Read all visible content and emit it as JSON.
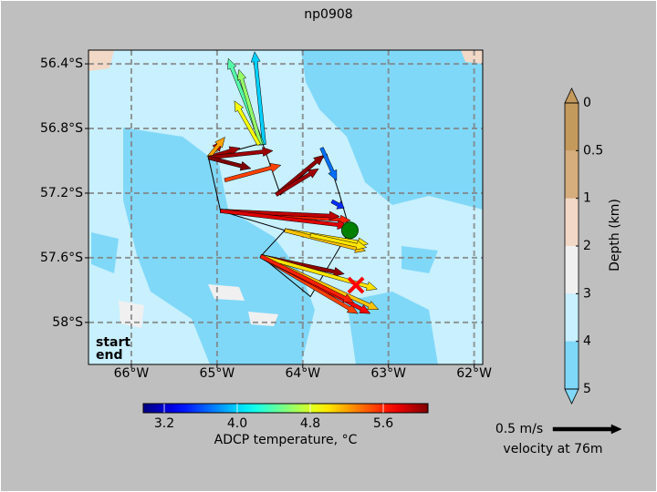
{
  "chart_data": {
    "type": "quiver",
    "title": "np0908",
    "xlim": [
      -66.5,
      -61.9
    ],
    "ylim": [
      -58.26,
      -56.315
    ],
    "xticks": [
      {
        "value": -66,
        "label": "66°W"
      },
      {
        "value": -65,
        "label": "65°W"
      },
      {
        "value": -64,
        "label": "64°W"
      },
      {
        "value": -63,
        "label": "63°W"
      },
      {
        "value": -62,
        "label": "62°W"
      }
    ],
    "yticks": [
      {
        "value": -56.4,
        "label": "56.4°S"
      },
      {
        "value": -56.8,
        "label": "56.8°S"
      },
      {
        "value": -57.2,
        "label": "57.2°S"
      },
      {
        "value": -57.6,
        "label": "57.6°S"
      },
      {
        "value": -58.0,
        "label": "58°S"
      }
    ],
    "grid": true,
    "track": {
      "lon": [
        -64.47,
        -65.1,
        -64.96,
        -64.21,
        -64.49,
        -63.91,
        -63.45,
        -63.57,
        -63.72,
        -64.26,
        -64.47
      ],
      "lat": [
        -56.89,
        -56.98,
        -57.31,
        -57.43,
        -57.59,
        -57.84,
        -57.43,
        -57.21,
        -56.96,
        -57.21,
        -56.89
      ]
    },
    "start": {
      "label": "start",
      "lon": -63.45,
      "lat": -57.43,
      "color": "#008000"
    },
    "end": {
      "label": "end",
      "lon": -63.38,
      "lat": -57.77,
      "color": "#ff0000"
    },
    "arrows": [
      {
        "lon": -64.45,
        "lat": -56.9,
        "u": -0.07,
        "v": 0.68,
        "temp": 4.0
      },
      {
        "lon": -64.47,
        "lat": -56.9,
        "u": -0.25,
        "v": 0.63,
        "temp": 4.4
      },
      {
        "lon": -64.49,
        "lat": -56.9,
        "u": -0.16,
        "v": 0.55,
        "temp": 4.6
      },
      {
        "lon": -64.51,
        "lat": -56.9,
        "u": -0.18,
        "v": 0.32,
        "temp": 4.9
      },
      {
        "lon": -65.1,
        "lat": -56.98,
        "u": 0.23,
        "v": 0.07,
        "temp": 6.0
      },
      {
        "lon": -65.1,
        "lat": -56.98,
        "u": 0.1,
        "v": 0.12,
        "temp": 5.9
      },
      {
        "lon": -65.1,
        "lat": -56.98,
        "u": 0.12,
        "v": 0.15,
        "temp": 5.2
      },
      {
        "lon": -65.1,
        "lat": -56.98,
        "u": 0.47,
        "v": 0.05,
        "temp": 6.0
      },
      {
        "lon": -65.1,
        "lat": -56.98,
        "u": 0.31,
        "v": -0.08,
        "temp": 6.1
      },
      {
        "lon": -64.91,
        "lat": -57.12,
        "u": 0.41,
        "v": 0.11,
        "temp": 5.5
      },
      {
        "lon": -64.31,
        "lat": -57.21,
        "u": 0.35,
        "v": 0.29,
        "temp": 6.05
      },
      {
        "lon": -64.31,
        "lat": -57.21,
        "u": 0.31,
        "v": 0.19,
        "temp": 6.0
      },
      {
        "lon": -63.78,
        "lat": -56.92,
        "u": 0.11,
        "v": -0.24,
        "temp": 3.7
      },
      {
        "lon": -63.66,
        "lat": -57.25,
        "u": 0.09,
        "v": -0.05,
        "temp": 3.5
      },
      {
        "lon": -64.96,
        "lat": -57.31,
        "u": 0.95,
        "v": -0.07,
        "temp": 5.6
      },
      {
        "lon": -64.96,
        "lat": -57.31,
        "u": 0.87,
        "v": -0.04,
        "temp": 5.9
      },
      {
        "lon": -64.96,
        "lat": -57.31,
        "u": 0.93,
        "v": -0.11,
        "temp": 5.8
      },
      {
        "lon": -64.21,
        "lat": -57.43,
        "u": 0.61,
        "v": -0.1,
        "temp": 5.0
      },
      {
        "lon": -64.21,
        "lat": -57.43,
        "u": 0.59,
        "v": -0.15,
        "temp": 5.1
      },
      {
        "lon": -63.91,
        "lat": -57.46,
        "u": 0.41,
        "v": -0.09,
        "temp": 5.0
      },
      {
        "lon": -64.49,
        "lat": -57.59,
        "u": 0.61,
        "v": -0.13,
        "temp": 6.05
      },
      {
        "lon": -64.49,
        "lat": -57.59,
        "u": 0.71,
        "v": -0.42,
        "temp": 5.5
      },
      {
        "lon": -64.49,
        "lat": -57.59,
        "u": 0.8,
        "v": -0.42,
        "temp": 5.7
      },
      {
        "lon": -64.49,
        "lat": -57.59,
        "u": 0.86,
        "v": -0.39,
        "temp": 5.1
      },
      {
        "lon": -64.49,
        "lat": -57.59,
        "u": 0.85,
        "v": -0.24,
        "temp": 5.0
      },
      {
        "lon": -64.49,
        "lat": -57.59,
        "u": 0.68,
        "v": -0.34,
        "temp": 5.6
      }
    ],
    "temp_colorbar": {
      "label": "ADCP temperature, °C",
      "lim": [
        2.97,
        6.09
      ],
      "ticks": [
        3.2,
        {
          "value": 4.0,
          "label": "4.0"
        },
        4.8,
        5.6
      ]
    },
    "depth_colorbar": {
      "label": "Depth (km)",
      "levels": [
        0,
        0.5,
        1,
        2,
        3,
        4,
        5
      ],
      "colors": [
        "#c49a5c",
        "#d6ad7c",
        "#f2d8c6",
        "#f0f0f0",
        "#c8f0ff",
        "#80d8f8"
      ]
    },
    "scale": {
      "value": 0.5,
      "label": "0.5 m/s",
      "caption": "velocity at 76m"
    }
  }
}
